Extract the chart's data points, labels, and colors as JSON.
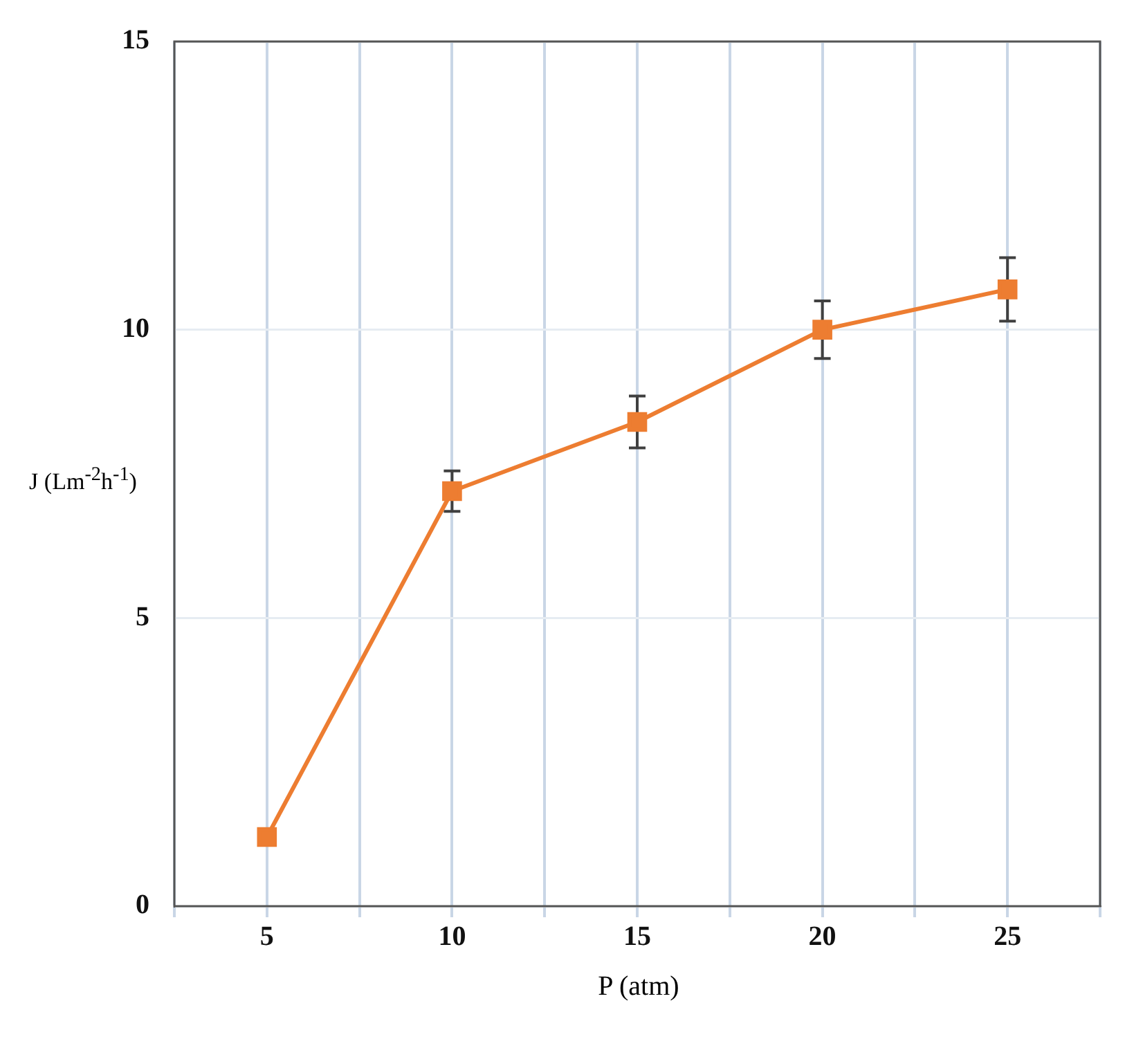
{
  "chart_data": {
    "type": "line",
    "xlabel": "P (atm)",
    "ylabel": "J (Lm$^{-2}$h$^{-1}$)",
    "x": [
      5,
      10,
      15,
      20,
      25
    ],
    "series": [
      {
        "color": "#ed7d31",
        "values": [
          1.2,
          7.2,
          8.4,
          10.0,
          10.7
        ],
        "errors": [
          null,
          0.35,
          0.45,
          0.5,
          0.55
        ]
      }
    ],
    "xlim": [
      2.5,
      27.5
    ],
    "xticks": [
      {
        "value": 2.5,
        "label": null
      },
      5,
      {
        "value": 7.5,
        "label": null
      },
      10,
      {
        "value": 12.5,
        "label": null
      },
      15,
      {
        "value": 17.5,
        "label": null
      },
      20,
      {
        "value": 22.5,
        "label": null
      },
      25,
      {
        "value": 27.5,
        "label": null
      }
    ],
    "ylim": [
      0,
      15
    ],
    "yticks": [
      0,
      5,
      10,
      15
    ],
    "grid": true,
    "legend": false,
    "marker": "square",
    "line_style": "solid"
  }
}
